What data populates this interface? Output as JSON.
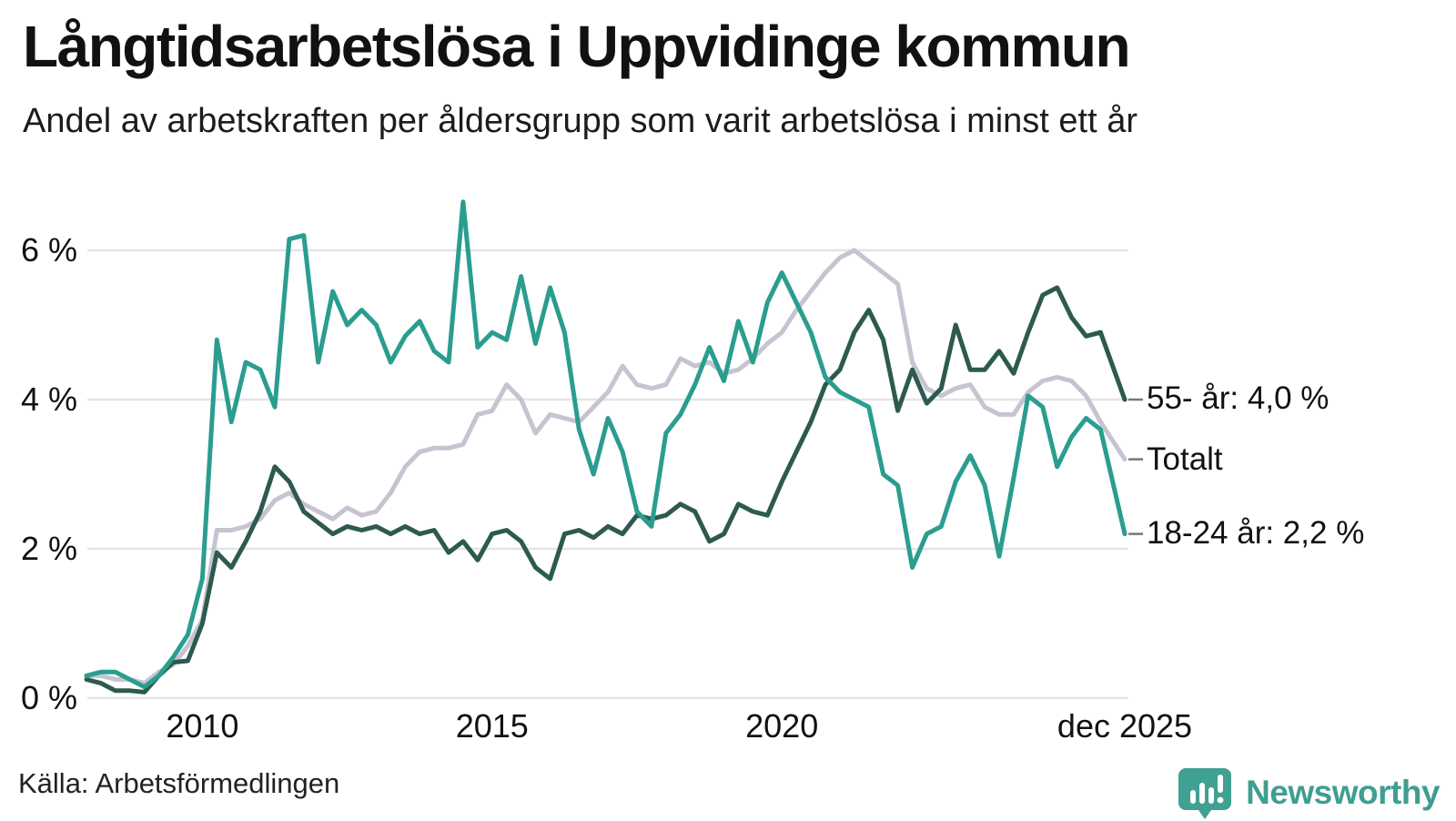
{
  "header": {
    "title": "Långtidsarbetslösa i Uppvidinge kommun",
    "subtitle": "Andel av arbetskraften per åldersgrupp som varit arbetslösa i minst ett år"
  },
  "footer": {
    "source": "Källa: Arbetsförmedlingen",
    "brand": "Newsworthy"
  },
  "colors": {
    "teal_series": "#2a9d8f",
    "dark_green_series": "#2d5a4f",
    "gray_series": "#c6c4d1",
    "gridline": "#e4e4e8",
    "connector": "#777777",
    "text": "#111111",
    "brand_teal": "#3f9e91"
  },
  "chart_data": {
    "type": "line",
    "title": "Långtidsarbetslösa i Uppvidinge kommun",
    "subtitle": "Andel av arbetskraften per åldersgrupp som varit arbetslösa i minst ett år",
    "xlabel": "",
    "ylabel": "",
    "grid": true,
    "legend_position": "right-end-labels",
    "x_unit": "year (quarterly samples, Jan 2008 – Oct 2025, final point Dec 2025)",
    "x_start": 2008.0,
    "x_step": 0.25,
    "x_last": 2025.917,
    "ylim": [
      0,
      6.8
    ],
    "y_ticks": [
      {
        "label": "0 %",
        "v": 0
      },
      {
        "label": "2 %",
        "v": 2
      },
      {
        "label": "4 %",
        "v": 4
      },
      {
        "label": "6 %",
        "v": 6
      }
    ],
    "x_ticks": [
      {
        "label": "2010",
        "t": 2010
      },
      {
        "label": "2015",
        "t": 2015
      },
      {
        "label": "2020",
        "t": 2020
      },
      {
        "label": "dec 2025",
        "t": 2025.917
      }
    ],
    "series": [
      {
        "name": "Totalt",
        "end_label": "Totalt",
        "end_value": 3.2,
        "color": "#c6c4d1",
        "values": [
          0.3,
          0.3,
          0.25,
          0.25,
          0.2,
          0.35,
          0.45,
          0.7,
          1.05,
          2.25,
          2.25,
          2.3,
          2.4,
          2.65,
          2.75,
          2.6,
          2.5,
          2.4,
          2.55,
          2.45,
          2.5,
          2.75,
          3.1,
          3.3,
          3.35,
          3.35,
          3.4,
          3.8,
          3.85,
          4.2,
          4.0,
          3.55,
          3.8,
          3.75,
          3.7,
          3.9,
          4.1,
          4.45,
          4.2,
          4.15,
          4.2,
          4.55,
          4.45,
          4.5,
          4.35,
          4.4,
          4.55,
          4.75,
          4.9,
          5.2,
          5.45,
          5.7,
          5.9,
          6.0,
          5.85,
          5.7,
          5.55,
          4.5,
          4.15,
          4.05,
          4.15,
          4.2,
          3.9,
          3.8,
          3.8,
          4.1,
          4.25,
          4.3,
          4.25,
          4.05,
          3.7,
          3.2
        ]
      },
      {
        "name": "55- år",
        "end_label": "55- år: 4,0 %",
        "end_value": 4.0,
        "color": "#2d5a4f",
        "values": [
          0.25,
          0.2,
          0.1,
          0.1,
          0.08,
          0.3,
          0.48,
          0.5,
          1.0,
          1.95,
          1.75,
          2.1,
          2.5,
          3.1,
          2.9,
          2.5,
          2.35,
          2.2,
          2.3,
          2.25,
          2.3,
          2.2,
          2.3,
          2.2,
          2.25,
          1.95,
          2.1,
          1.85,
          2.2,
          2.25,
          2.1,
          1.75,
          1.6,
          2.2,
          2.25,
          2.15,
          2.3,
          2.2,
          2.45,
          2.4,
          2.45,
          2.6,
          2.5,
          2.1,
          2.2,
          2.6,
          2.5,
          2.45,
          2.9,
          3.3,
          3.7,
          4.2,
          4.4,
          4.9,
          5.2,
          4.8,
          3.85,
          4.4,
          3.95,
          4.15,
          5.0,
          4.4,
          4.4,
          4.65,
          4.35,
          4.9,
          5.4,
          5.5,
          5.1,
          4.85,
          4.9,
          4.0
        ]
      },
      {
        "name": "18-24 år",
        "end_label": "18-24 år: 2,2 %",
        "end_value": 2.2,
        "color": "#2a9d8f",
        "values": [
          0.3,
          0.35,
          0.35,
          0.25,
          0.15,
          0.3,
          0.55,
          0.85,
          1.6,
          4.8,
          3.7,
          4.5,
          4.4,
          3.9,
          6.15,
          6.2,
          4.5,
          5.45,
          5.0,
          5.2,
          5.0,
          4.5,
          4.85,
          5.05,
          4.65,
          4.5,
          6.65,
          4.7,
          4.9,
          4.8,
          5.65,
          4.75,
          5.5,
          4.9,
          3.6,
          3.0,
          3.75,
          3.3,
          2.5,
          2.3,
          3.55,
          3.8,
          4.2,
          4.7,
          4.25,
          5.05,
          4.5,
          5.3,
          5.7,
          5.3,
          4.9,
          4.3,
          4.1,
          4.0,
          3.9,
          3.0,
          2.85,
          1.75,
          2.2,
          2.3,
          2.9,
          3.25,
          2.85,
          1.9,
          2.95,
          4.05,
          3.9,
          3.1,
          3.5,
          3.75,
          3.6,
          2.2
        ]
      }
    ]
  }
}
